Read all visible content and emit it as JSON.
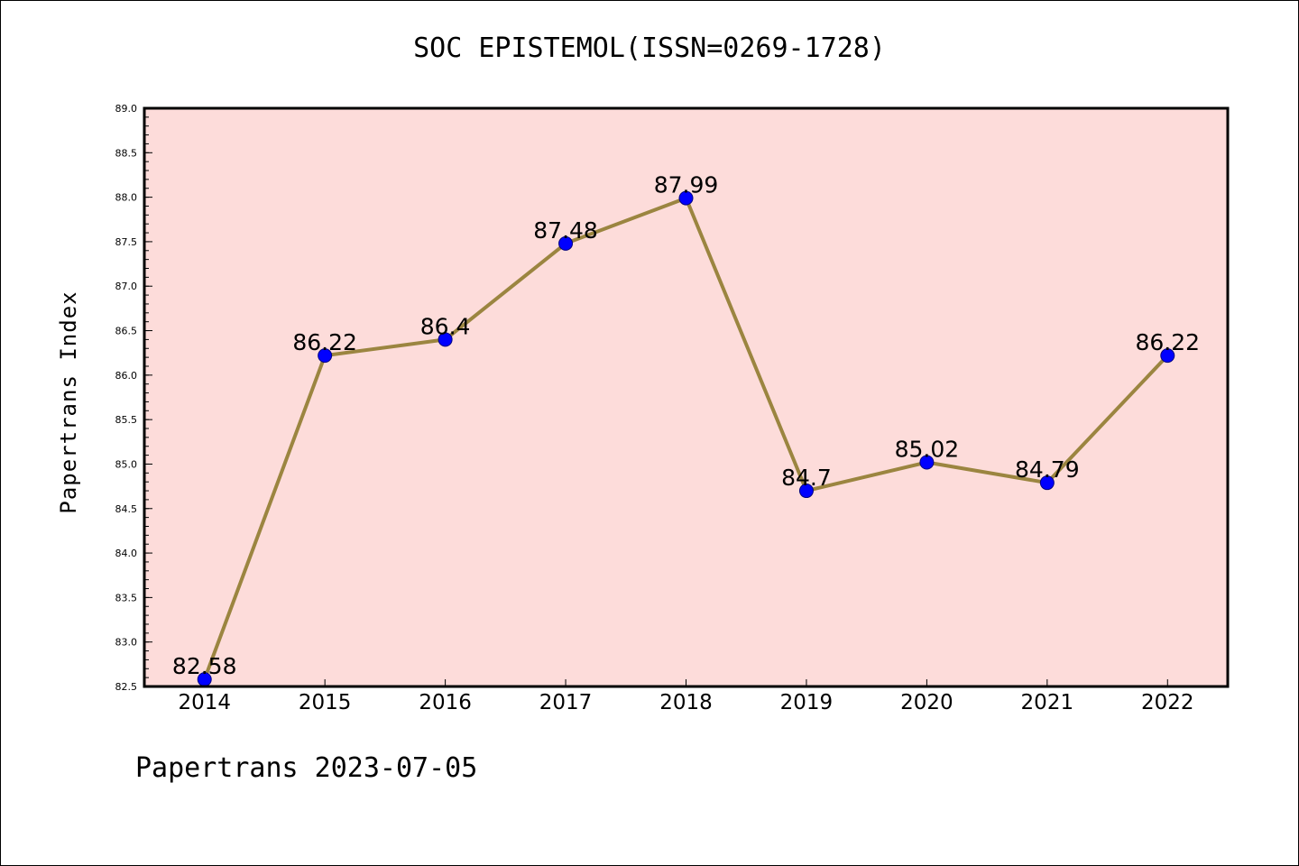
{
  "chart_data": {
    "type": "line",
    "title": "SOC EPISTEMOL(ISSN=0269-1728)",
    "xlabel": "",
    "ylabel": "Papertrans Index",
    "categories": [
      "2014",
      "2015",
      "2016",
      "2017",
      "2018",
      "2019",
      "2020",
      "2021",
      "2022"
    ],
    "series": [
      {
        "values": [
          82.58,
          86.22,
          86.4,
          87.48,
          87.99,
          84.7,
          85.02,
          84.79,
          86.22
        ],
        "labels": [
          "82.58",
          "86.22",
          "86.4",
          "87.48",
          "87.99",
          "84.7",
          "85.02",
          "84.79",
          "86.22"
        ]
      }
    ],
    "ylim": [
      82.5,
      89.0
    ],
    "yticks": [
      "82.5",
      "83.0",
      "83.5",
      "84.0",
      "84.5",
      "85.0",
      "85.5",
      "86.0",
      "86.5",
      "87.0",
      "87.5",
      "88.0",
      "88.5",
      "89.0"
    ],
    "grid": false,
    "legend": "none",
    "colors": {
      "plot_background": "#fddcda",
      "line": "#9b8540",
      "marker_fill": "#0000ff",
      "marker_edge": "#000080",
      "axis": "#000000"
    }
  },
  "footer": "Papertrans 2023-07-05"
}
